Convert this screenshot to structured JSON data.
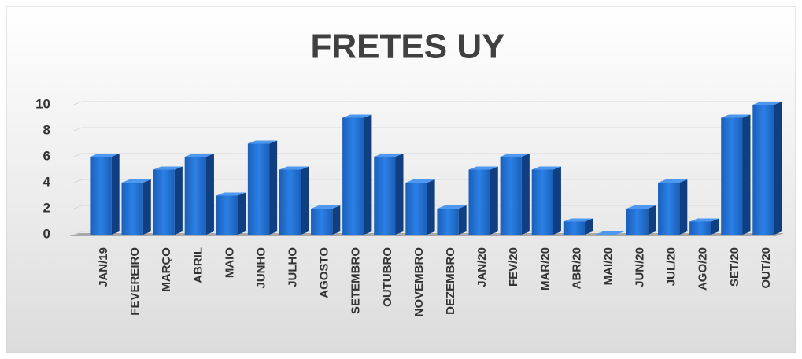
{
  "chart_data": {
    "type": "bar",
    "title": "FRETES UY",
    "categories": [
      "JAN/19",
      "FEVEREIRO",
      "MARÇO",
      "ABRIL",
      "MAIO",
      "JUNHO",
      "JULHO",
      "AGOSTO",
      "SETEMBRO",
      "OUTUBRO",
      "NOVEMBRO",
      "DEZEMBRO",
      "JAN/20",
      "FEV/20",
      "MAR/20",
      "ABR/20",
      "MAI/20",
      "JUN/20",
      "JUL/20",
      "AGO/20",
      "SET/20",
      "OUT/20"
    ],
    "values": [
      6,
      4,
      5,
      6,
      3,
      7,
      5,
      2,
      9,
      6,
      4,
      2,
      5,
      6,
      5,
      1,
      0,
      2,
      4,
      1,
      9,
      10
    ],
    "color": "#1f6fd1",
    "ylim": [
      0,
      10
    ],
    "yticks": [
      0,
      2,
      4,
      6,
      8,
      10
    ],
    "grid": true
  }
}
